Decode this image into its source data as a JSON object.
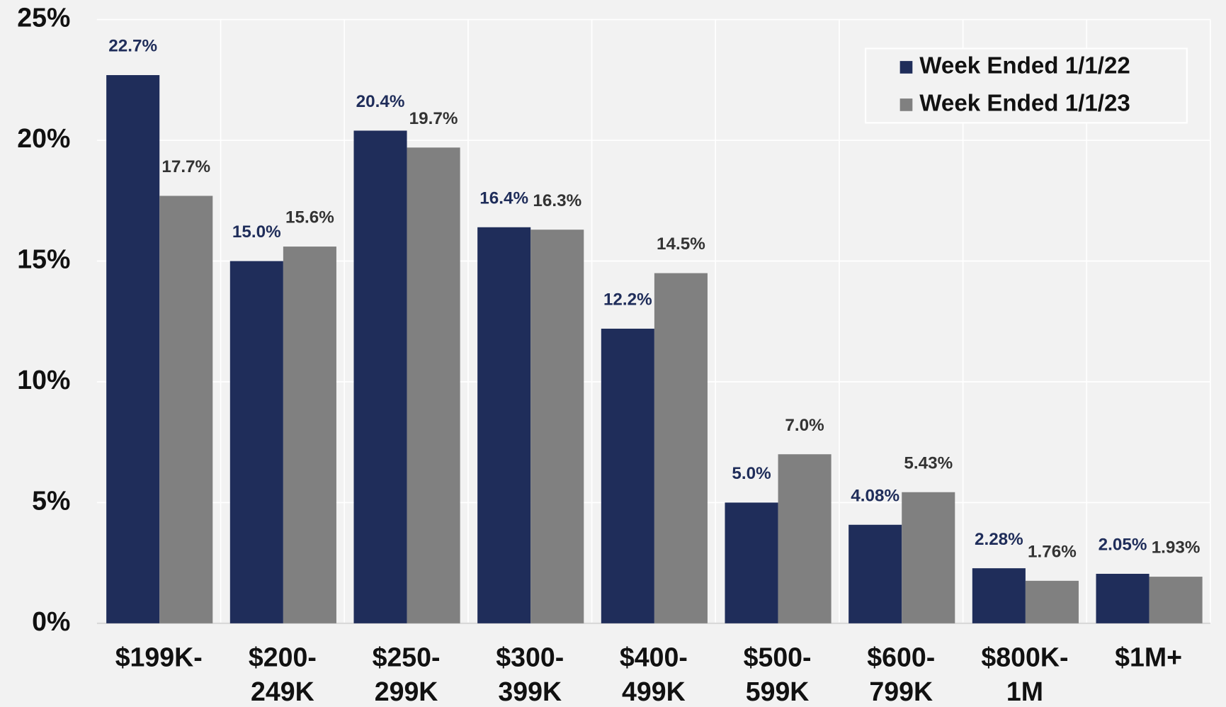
{
  "chart_data": {
    "type": "bar",
    "categories": [
      [
        "$199K-"
      ],
      [
        "$200-",
        "249K"
      ],
      [
        "$250-",
        "299K"
      ],
      [
        "$300-",
        "399K"
      ],
      [
        "$400-",
        "499K"
      ],
      [
        "$500-",
        "599K"
      ],
      [
        "$600-",
        "799K"
      ],
      [
        "$800K-",
        "1M"
      ],
      [
        "$1M+"
      ]
    ],
    "series": [
      {
        "name": "Week Ended 1/1/22",
        "color": "#1f2d5a",
        "label_color": "#1f2d5a",
        "values": [
          22.7,
          15.0,
          20.4,
          16.4,
          12.2,
          5.0,
          4.08,
          2.28,
          2.05
        ],
        "value_labels": [
          "22.7%",
          "15.0%",
          "20.4%",
          "16.4%",
          "12.2%",
          "5.0%",
          "4.08%",
          "2.28%",
          "2.05%"
        ]
      },
      {
        "name": "Week Ended 1/1/23",
        "color": "#808080",
        "label_color": "#333333",
        "values": [
          17.7,
          15.6,
          19.7,
          16.3,
          14.5,
          7.0,
          5.43,
          1.76,
          1.93
        ],
        "value_labels": [
          "17.7%",
          "15.6%",
          "19.7%",
          "16.3%",
          "14.5%",
          "7.0%",
          "5.43%",
          "1.76%",
          "1.93%"
        ]
      }
    ],
    "ylim": [
      0,
      25
    ],
    "yticks": [
      {
        "value": 0,
        "label": "0%"
      },
      {
        "value": 5,
        "label": "5%"
      },
      {
        "value": 10,
        "label": "10%"
      },
      {
        "value": 15,
        "label": "15%"
      },
      {
        "value": 20,
        "label": "20%"
      },
      {
        "value": 25,
        "label": "25%"
      }
    ],
    "grid": true,
    "legend": "upper right"
  }
}
